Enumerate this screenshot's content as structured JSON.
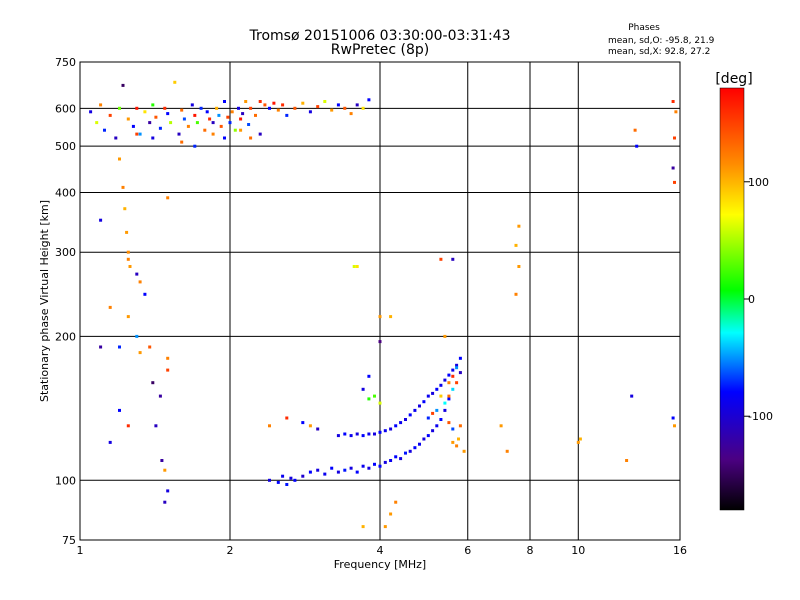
{
  "chart_data": {
    "type": "scatter",
    "title": "Tromsø 20151006 03:30:00-03:31:43",
    "subtitle": "RwPretec (8p)",
    "xlabel": "Frequency [MHz]",
    "ylabel": "Stationary phase Virtual Height [km]",
    "x_scale": "log",
    "y_scale": "log",
    "xlim": [
      1,
      16
    ],
    "ylim": [
      75,
      750
    ],
    "x_ticks": [
      1,
      2,
      4,
      6,
      8,
      10,
      16
    ],
    "x_tick_labels": [
      "1",
      "2",
      "4",
      "6",
      "8",
      "10",
      "16"
    ],
    "y_ticks": [
      75,
      100,
      200,
      300,
      400,
      500,
      600,
      750
    ],
    "y_tick_labels": [
      "75",
      "100",
      "200",
      "300",
      "400",
      "500",
      "600",
      "750"
    ],
    "grid": true,
    "stats": {
      "heading": "Phases",
      "line_o": "mean, sd,O: -95.8, 21.9",
      "line_x": "mean, sd,X:  92.8, 27.2"
    },
    "colorbar": {
      "label": "[deg]",
      "range": [
        -180,
        180
      ],
      "ticks": [
        100,
        0,
        -100
      ],
      "tick_labels": [
        "100",
        "0",
        "-100"
      ],
      "colors": [
        "#000000",
        "#4b0082",
        "#0000ff",
        "#00ffff",
        "#00ff00",
        "#ffff00",
        "#ff8c00",
        "#ff0000"
      ]
    },
    "series": [
      {
        "points": [
          [
            1.05,
            590,
            -110
          ],
          [
            1.08,
            560,
            60
          ],
          [
            1.1,
            610,
            120
          ],
          [
            1.12,
            540,
            -90
          ],
          [
            1.15,
            580,
            150
          ],
          [
            1.18,
            520,
            -120
          ],
          [
            1.2,
            600,
            30
          ],
          [
            1.22,
            670,
            -150
          ],
          [
            1.25,
            570,
            110
          ],
          [
            1.28,
            550,
            -100
          ],
          [
            1.3,
            600,
            170
          ],
          [
            1.32,
            530,
            -60
          ],
          [
            1.35,
            590,
            80
          ],
          [
            1.38,
            560,
            -130
          ],
          [
            1.4,
            610,
            10
          ],
          [
            1.42,
            575,
            140
          ],
          [
            1.45,
            545,
            -90
          ],
          [
            1.48,
            600,
            160
          ],
          [
            1.5,
            585,
            -100
          ],
          [
            1.52,
            560,
            50
          ],
          [
            1.55,
            680,
            90
          ],
          [
            1.58,
            530,
            -120
          ],
          [
            1.6,
            595,
            130
          ],
          [
            1.62,
            570,
            -80
          ],
          [
            1.65,
            550,
            120
          ],
          [
            1.68,
            610,
            -110
          ],
          [
            1.7,
            580,
            170
          ],
          [
            1.72,
            560,
            20
          ],
          [
            1.75,
            600,
            -90
          ],
          [
            1.78,
            540,
            130
          ],
          [
            1.8,
            590,
            -100
          ],
          [
            1.82,
            570,
            160
          ],
          [
            1.85,
            560,
            -120
          ],
          [
            1.88,
            600,
            100
          ],
          [
            1.9,
            580,
            -60
          ],
          [
            1.92,
            550,
            140
          ],
          [
            1.95,
            620,
            -100
          ],
          [
            1.98,
            575,
            150
          ],
          [
            2.0,
            560,
            -90
          ],
          [
            2.02,
            590,
            120
          ],
          [
            2.05,
            540,
            40
          ],
          [
            2.08,
            600,
            -110
          ],
          [
            2.1,
            570,
            170
          ],
          [
            2.12,
            585,
            -120
          ],
          [
            2.15,
            620,
            110
          ],
          [
            2.18,
            555,
            -80
          ],
          [
            2.2,
            600,
            150
          ],
          [
            2.25,
            580,
            130
          ],
          [
            2.3,
            620,
            160
          ],
          [
            2.35,
            610,
            140
          ],
          [
            2.4,
            600,
            -100
          ],
          [
            2.45,
            615,
            170
          ],
          [
            2.5,
            595,
            120
          ],
          [
            2.55,
            610,
            160
          ],
          [
            2.6,
            580,
            -90
          ],
          [
            2.7,
            600,
            140
          ],
          [
            2.8,
            615,
            100
          ],
          [
            2.9,
            590,
            -110
          ],
          [
            3.0,
            605,
            150
          ],
          [
            3.1,
            620,
            60
          ],
          [
            3.2,
            595,
            110
          ],
          [
            3.3,
            610,
            -100
          ],
          [
            3.4,
            600,
            140
          ],
          [
            3.5,
            585,
            120
          ],
          [
            3.6,
            610,
            -120
          ],
          [
            3.7,
            600,
            80
          ],
          [
            3.8,
            625,
            -100
          ],
          [
            1.3,
            530,
            150
          ],
          [
            1.4,
            520,
            -110
          ],
          [
            1.6,
            510,
            130
          ],
          [
            1.7,
            500,
            -90
          ],
          [
            1.85,
            530,
            120
          ],
          [
            1.95,
            520,
            -100
          ],
          [
            2.1,
            540,
            110
          ],
          [
            2.3,
            530,
            -120
          ],
          [
            2.2,
            520,
            130
          ]
        ]
      },
      {
        "points": [
          [
            1.2,
            470,
            110
          ],
          [
            1.22,
            410,
            120
          ],
          [
            1.23,
            370,
            100
          ],
          [
            1.24,
            330,
            110
          ],
          [
            1.25,
            300,
            115
          ],
          [
            1.25,
            290,
            120
          ],
          [
            1.26,
            280,
            110
          ],
          [
            1.3,
            270,
            -120
          ],
          [
            1.32,
            260,
            120
          ],
          [
            1.35,
            245,
            -100
          ],
          [
            1.1,
            350,
            -110
          ],
          [
            1.15,
            230,
            120
          ],
          [
            1.2,
            190,
            -90
          ],
          [
            1.25,
            220,
            110
          ],
          [
            1.3,
            200,
            -60
          ],
          [
            1.32,
            185,
            110
          ],
          [
            1.4,
            160,
            -150
          ],
          [
            1.45,
            150,
            -130
          ],
          [
            1.5,
            170,
            150
          ],
          [
            1.42,
            130,
            -120
          ],
          [
            1.46,
            110,
            -130
          ],
          [
            1.48,
            105,
            110
          ],
          [
            1.38,
            190,
            140
          ],
          [
            1.5,
            180,
            120
          ],
          [
            1.2,
            140,
            -100
          ],
          [
            1.25,
            130,
            160
          ],
          [
            1.15,
            120,
            -110
          ],
          [
            1.5,
            390,
            120
          ],
          [
            1.1,
            190,
            -130
          ],
          [
            1.5,
            95,
            -110
          ],
          [
            1.48,
            90,
            -120
          ]
        ]
      },
      {
        "points": [
          [
            2.4,
            100,
            -110
          ],
          [
            2.5,
            99,
            -100
          ],
          [
            2.55,
            102,
            -105
          ],
          [
            2.6,
            98,
            -95
          ],
          [
            2.65,
            101,
            -110
          ],
          [
            2.7,
            100,
            -100
          ],
          [
            2.8,
            102,
            -115
          ],
          [
            2.9,
            104,
            -100
          ],
          [
            3.0,
            105,
            -110
          ],
          [
            3.1,
            103,
            -105
          ],
          [
            3.2,
            106,
            -100
          ],
          [
            3.3,
            104,
            -110
          ],
          [
            3.4,
            105,
            -95
          ],
          [
            3.5,
            106,
            -110
          ],
          [
            3.6,
            104,
            -100
          ],
          [
            3.7,
            107,
            -105
          ],
          [
            3.8,
            106,
            -110
          ],
          [
            3.9,
            108,
            -100
          ],
          [
            4.0,
            107,
            -100
          ],
          [
            4.1,
            109,
            -110
          ],
          [
            4.2,
            110,
            -105
          ],
          [
            4.3,
            112,
            -100
          ],
          [
            4.4,
            111,
            -110
          ],
          [
            4.5,
            114,
            -95
          ],
          [
            4.6,
            115,
            -110
          ],
          [
            4.7,
            117,
            -100
          ],
          [
            4.8,
            119,
            -105
          ],
          [
            4.9,
            122,
            -110
          ],
          [
            5.0,
            124,
            -100
          ],
          [
            5.1,
            127,
            -110
          ],
          [
            5.2,
            130,
            -105
          ],
          [
            5.3,
            134,
            -100
          ],
          [
            5.4,
            140,
            -110
          ],
          [
            5.5,
            148,
            -100
          ]
        ]
      },
      {
        "points": [
          [
            3.3,
            124,
            -110
          ],
          [
            3.4,
            125,
            -100
          ],
          [
            3.5,
            124,
            -105
          ],
          [
            3.6,
            125,
            -110
          ],
          [
            3.7,
            124,
            -100
          ],
          [
            3.8,
            125,
            -105
          ],
          [
            3.9,
            125,
            -110
          ],
          [
            4.0,
            126,
            -100
          ],
          [
            4.1,
            127,
            -105
          ],
          [
            4.2,
            128,
            -110
          ],
          [
            4.3,
            130,
            -100
          ],
          [
            4.4,
            132,
            -105
          ],
          [
            4.5,
            134,
            -110
          ],
          [
            4.6,
            137,
            -100
          ],
          [
            4.7,
            140,
            -105
          ],
          [
            4.8,
            143,
            -110
          ],
          [
            4.9,
            146,
            -100
          ],
          [
            5.0,
            150,
            -105
          ],
          [
            5.1,
            152,
            -110
          ],
          [
            5.2,
            155,
            -100
          ],
          [
            5.3,
            158,
            -105
          ],
          [
            5.4,
            162,
            -110
          ],
          [
            5.5,
            166,
            -100
          ],
          [
            5.6,
            170,
            -105
          ],
          [
            5.7,
            174,
            -110
          ],
          [
            5.5,
            160,
            120
          ],
          [
            5.6,
            165,
            160
          ],
          [
            5.7,
            172,
            -60
          ],
          [
            5.8,
            180,
            -100
          ],
          [
            5.5,
            150,
            130
          ],
          [
            5.6,
            155,
            -40
          ],
          [
            5.7,
            160,
            150
          ],
          [
            5.8,
            168,
            -120
          ],
          [
            5.6,
            120,
            110
          ],
          [
            5.7,
            118,
            120
          ],
          [
            5.75,
            122,
            100
          ],
          [
            5.8,
            130,
            130
          ],
          [
            5.9,
            115,
            110
          ],
          [
            5.6,
            128,
            -80
          ],
          [
            5.5,
            132,
            140
          ],
          [
            5.4,
            145,
            -30
          ],
          [
            5.3,
            150,
            90
          ],
          [
            5.2,
            140,
            -60
          ],
          [
            5.1,
            138,
            150
          ],
          [
            5.0,
            135,
            -90
          ],
          [
            4.2,
            85,
            110
          ],
          [
            4.3,
            90,
            120
          ],
          [
            4.1,
            80,
            110
          ],
          [
            3.7,
            80,
            100
          ],
          [
            3.8,
            165,
            -100
          ],
          [
            3.9,
            150,
            20
          ],
          [
            4.0,
            145,
            60
          ],
          [
            3.7,
            155,
            -110
          ],
          [
            3.8,
            148,
            10
          ],
          [
            4.0,
            195,
            -140
          ],
          [
            4.0,
            220,
            110
          ],
          [
            4.2,
            220,
            100
          ],
          [
            3.6,
            280,
            80
          ],
          [
            3.55,
            280,
            60
          ],
          [
            5.3,
            290,
            150
          ],
          [
            5.6,
            290,
            -120
          ],
          [
            5.4,
            200,
            110
          ]
        ]
      },
      {
        "points": [
          [
            2.4,
            130,
            120
          ],
          [
            2.6,
            135,
            160
          ],
          [
            2.8,
            132,
            -100
          ],
          [
            2.9,
            130,
            110
          ],
          [
            3.0,
            128,
            -120
          ],
          [
            7.6,
            340,
            110
          ],
          [
            7.5,
            310,
            100
          ],
          [
            7.6,
            280,
            110
          ],
          [
            7.5,
            245,
            120
          ],
          [
            7.0,
            130,
            110
          ],
          [
            7.2,
            115,
            120
          ],
          [
            10.0,
            120,
            110
          ],
          [
            10.1,
            122,
            100
          ],
          [
            12.8,
            150,
            -110
          ],
          [
            12.5,
            110,
            120
          ],
          [
            15.5,
            620,
            160
          ],
          [
            15.7,
            590,
            120
          ],
          [
            15.6,
            520,
            150
          ],
          [
            15.5,
            450,
            -130
          ],
          [
            15.6,
            420,
            150
          ],
          [
            13.0,
            540,
            130
          ],
          [
            13.1,
            500,
            -100
          ],
          [
            15.5,
            135,
            -100
          ],
          [
            15.6,
            130,
            110
          ]
        ]
      }
    ]
  }
}
